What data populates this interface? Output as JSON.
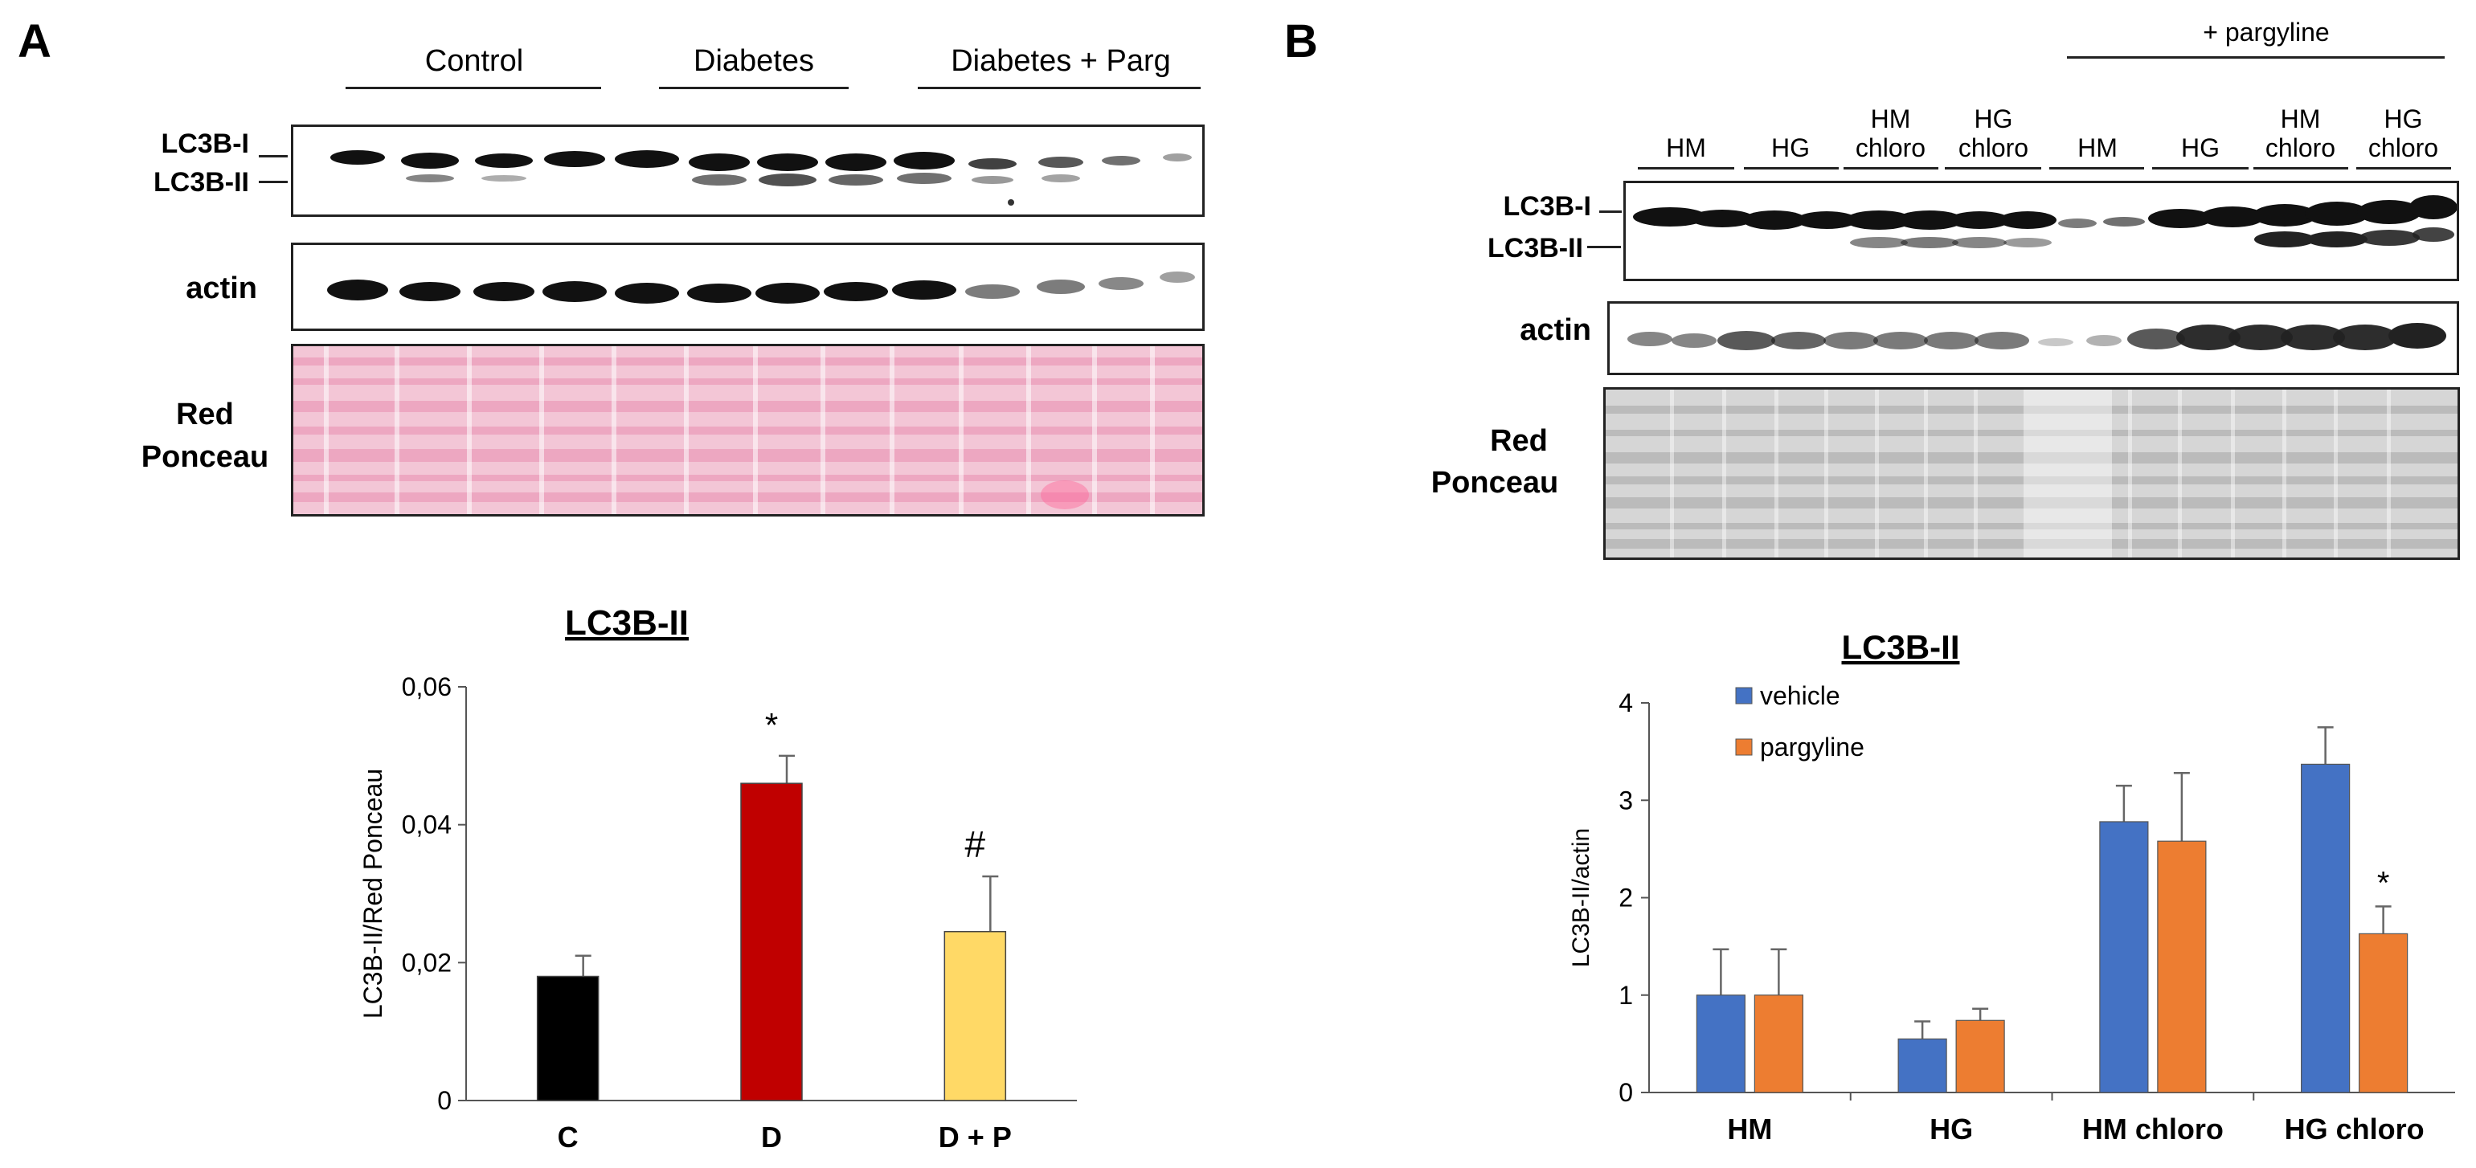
{
  "panelA": {
    "letter": "A",
    "groups": [
      "Control",
      "Diabetes",
      "Diabetes + Parg"
    ],
    "blot_labels": {
      "lc3b_i": "LC3B-I",
      "lc3b_ii": "LC3B-II",
      "actin": "actin",
      "ponceau_1": "Red",
      "ponceau_2": "Ponceau"
    },
    "colors": {
      "C": "#000000",
      "D": "#c00000",
      "DP": "#ffd966",
      "ponceau": "#f2b8cd"
    }
  },
  "panelB": {
    "letter": "B",
    "top_label": "+ pargyline",
    "lanes": [
      {
        "l1": "HM",
        "l2": ""
      },
      {
        "l1": "HG",
        "l2": ""
      },
      {
        "l1": "HM",
        "l2": "chloro"
      },
      {
        "l1": "HG",
        "l2": "chloro"
      },
      {
        "l1": "HM",
        "l2": ""
      },
      {
        "l1": "HG",
        "l2": ""
      },
      {
        "l1": "HM",
        "l2": "chloro"
      },
      {
        "l1": "HG",
        "l2": "chloro"
      }
    ],
    "blot_labels": {
      "lc3b_i": "LC3B-I",
      "lc3b_ii": "LC3B-II",
      "actin": "actin",
      "ponceau_1": "Red",
      "ponceau_2": "Ponceau"
    }
  },
  "chart_data": [
    {
      "type": "bar",
      "title": "LC3B-II",
      "xlabel": "",
      "ylabel": "LC3B-II/Red Ponceau",
      "categories": [
        "C",
        "D",
        "D + P"
      ],
      "values": [
        0.018,
        0.046,
        0.0245
      ],
      "errors": [
        0.003,
        0.004,
        0.008
      ],
      "annotations": [
        "",
        "*",
        "#"
      ],
      "colors": [
        "#000000",
        "#c00000",
        "#ffd966"
      ],
      "ylim": [
        0,
        0.06
      ],
      "yticks": [
        0,
        0.02,
        0.04,
        0.06
      ],
      "ytick_labels": [
        "0",
        "0,02",
        "0,04",
        "0,06"
      ],
      "grid": false
    },
    {
      "type": "bar",
      "title": "LC3B-II",
      "xlabel": "",
      "ylabel": "LC3B-II/actin",
      "categories": [
        "HM",
        "HG",
        "HM chloro",
        "HG chloro"
      ],
      "series": [
        {
          "name": "vehicle",
          "color": "#4472c4",
          "values": [
            1.0,
            0.55,
            2.78,
            3.37
          ],
          "errors": [
            0.47,
            0.18,
            0.37,
            0.38
          ],
          "annotations": [
            "",
            "",
            "",
            ""
          ]
        },
        {
          "name": "pargyline",
          "color": "#ed7d31",
          "values": [
            1.0,
            0.74,
            2.58,
            1.63
          ],
          "errors": [
            0.47,
            0.12,
            0.7,
            0.28
          ],
          "annotations": [
            "",
            "",
            "",
            "*"
          ]
        }
      ],
      "ylim": [
        0,
        4
      ],
      "yticks": [
        0,
        1,
        2,
        3,
        4
      ],
      "ytick_labels": [
        "0",
        "1",
        "2",
        "3",
        "4"
      ],
      "legend_position": "top-left",
      "grid": false
    }
  ]
}
